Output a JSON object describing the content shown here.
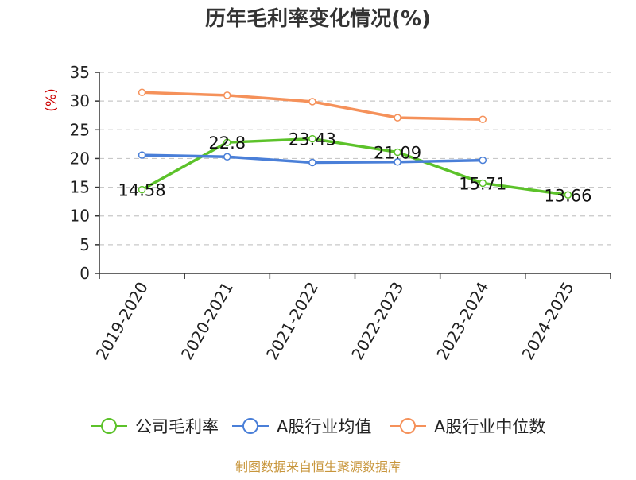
{
  "chart_data": {
    "type": "line",
    "title": "历年毛利率变化情况(%)",
    "ylabel": "(%)",
    "xlabel": "",
    "categories": [
      "2019-2020",
      "2020-2021",
      "2021-2022",
      "2022-2023",
      "2023-2024",
      "2024-2025"
    ],
    "ylim": [
      0,
      35
    ],
    "yticks": [
      0,
      5,
      10,
      15,
      20,
      25,
      30,
      35
    ],
    "grid": true,
    "legend_position": "bottom",
    "series": [
      {
        "name": "公司毛利率",
        "color": "#5cc22a",
        "values": [
          14.58,
          22.8,
          23.43,
          21.09,
          15.71,
          13.66
        ],
        "value_labels": [
          "14.58",
          "22.8",
          "23.43",
          "21.09",
          "15.71",
          "13.66"
        ]
      },
      {
        "name": "A股行业均值",
        "color": "#4a7fd8",
        "values": [
          20.6,
          20.3,
          19.3,
          19.4,
          19.7,
          null
        ]
      },
      {
        "name": "A股行业中位数",
        "color": "#f5915a",
        "values": [
          31.5,
          31.0,
          29.9,
          27.1,
          26.8,
          null
        ]
      }
    ],
    "source": "制图数据来自恒生聚源数据库",
    "colors": {
      "title": "#333333",
      "ylabel": "#cc0000",
      "source": "#c8963c",
      "grid": "#c8c8c8",
      "axis": "#333333"
    }
  }
}
